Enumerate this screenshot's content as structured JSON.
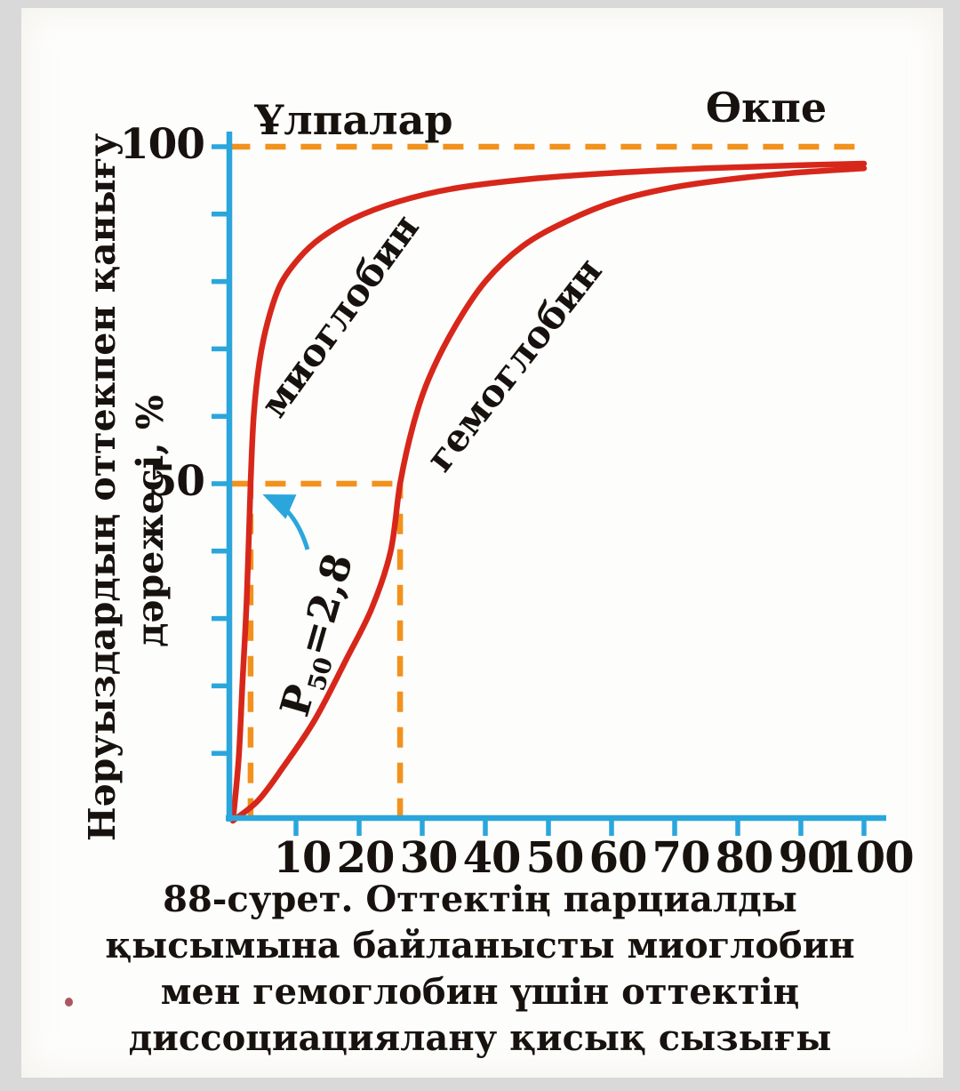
{
  "chart": {
    "region_label_tissues": "Ұлпалар",
    "region_label_lungs": "Өкпе",
    "y_axis_title_line1": "Нәруыздардың оттекпен қанығу",
    "y_axis_title_line2": "дәрежесі, %",
    "curve_label_myoglobin": "миоглобин",
    "curve_label_hemoglobin": "гемоглобин",
    "p50_annotation": {
      "symbol": "P",
      "subscript": "50",
      "value": "=2,8"
    }
  },
  "caption": {
    "lines": [
      "88-сурет. Оттектің парциалды",
      "қысымына байланысты миоглобин",
      "мен гемоглобин үшін оттектің",
      "диссоциациялану қисық сызығы"
    ]
  },
  "colors": {
    "axis_blue": "#2ba6dc",
    "curve_red": "#d7271b",
    "dash_orange": "#f2921d",
    "arrow_blue": "#2ba6dc",
    "text": "#17120e",
    "paper": "#fdfdfb",
    "photo_border": "#d9d9d9"
  },
  "chart_data": {
    "type": "line",
    "title": "",
    "xlabel": "",
    "ylabel": "Нәруыздардың оттекпен қанығу дәрежесі, %",
    "xlim": [
      0,
      104
    ],
    "ylim": [
      0,
      104
    ],
    "grid": false,
    "x_ticks": [
      10,
      20,
      30,
      40,
      50,
      60,
      70,
      80,
      90,
      100
    ],
    "y_ticks": [
      10,
      20,
      30,
      40,
      50,
      60,
      70,
      80,
      90,
      100
    ],
    "y_tick_labels": [
      {
        "value": 100,
        "label": "100"
      },
      {
        "value": 50,
        "label": "50"
      }
    ],
    "series": [
      {
        "name": "миоглобин",
        "x": [
          0,
          0.9,
          1.5,
          2.2,
          2.8,
          3.3,
          4.2,
          5.5,
          7.5,
          10.5,
          14,
          19,
          26,
          35,
          47,
          60,
          75,
          88,
          100
        ],
        "y": [
          0,
          9,
          20,
          33,
          50,
          60,
          68,
          74,
          79.5,
          83.5,
          86.5,
          89.3,
          91.8,
          93.8,
          95.2,
          96.1,
          96.8,
          97.2,
          97.5
        ]
      },
      {
        "name": "гемоглобин",
        "x": [
          0,
          4,
          8,
          13,
          18,
          22,
          25,
          26.5,
          28.5,
          31,
          35,
          40,
          46,
          53,
          61,
          70,
          80,
          90,
          100
        ],
        "y": [
          0,
          3,
          8,
          15,
          24,
          31.5,
          40,
          50,
          58.5,
          65.5,
          73,
          80,
          85.3,
          89,
          92,
          94,
          95.3,
          96.2,
          96.8
        ]
      }
    ],
    "reference_lines": [
      {
        "type": "h",
        "y": 100,
        "x1": -0.5,
        "x2": 100.8,
        "style": "dashed"
      },
      {
        "type": "h",
        "y": 50,
        "x1": -0.5,
        "x2": 26.5,
        "style": "dashed"
      },
      {
        "type": "v",
        "x": 2.8,
        "y1": 0.3,
        "y2": 50,
        "style": "dashed"
      },
      {
        "type": "v",
        "x": 26.5,
        "y1": 0.3,
        "y2": 50,
        "style": "dashed"
      }
    ],
    "p50_myoglobin": 2.8,
    "p50_hemoglobin": 26,
    "annotations": [
      {
        "text": "P50=2,8",
        "points_to": {
          "x": 2.8,
          "y": 50
        }
      }
    ],
    "legend_position": "on-curve"
  }
}
